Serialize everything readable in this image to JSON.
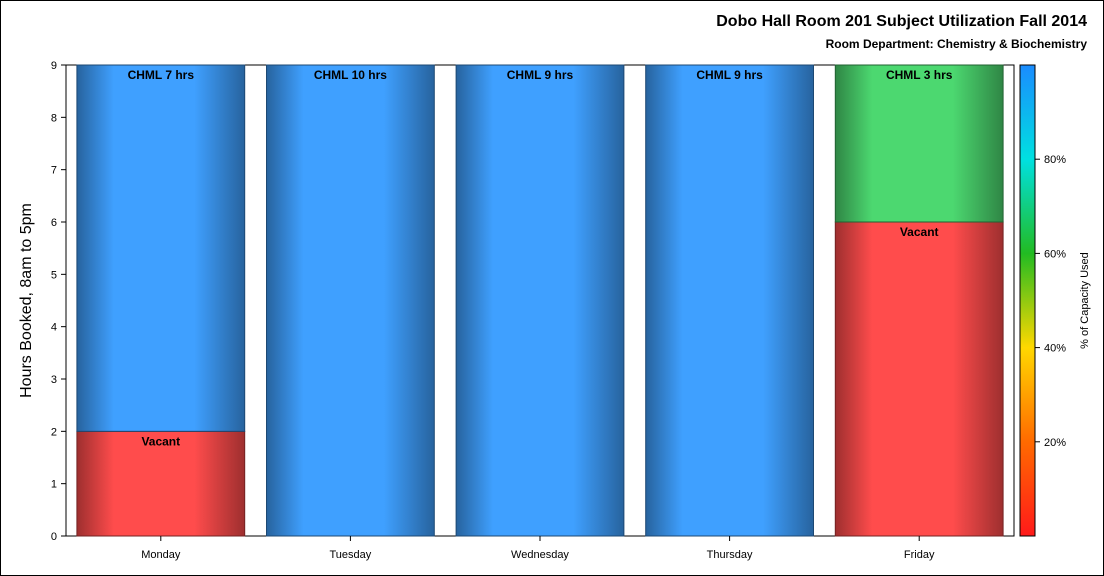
{
  "chart_data": {
    "type": "bar",
    "stacked": true,
    "title": "Dobo Hall Room 201 Subject Utilization Fall 2014",
    "subtitle": "Room Department:  Chemistry & Biochemistry",
    "xlabel": "",
    "ylabel": "Hours Booked, 8am to 5pm",
    "ylim": [
      0,
      9
    ],
    "yticks": [
      "0",
      "1",
      "2",
      "3",
      "4",
      "5",
      "6",
      "7",
      "8",
      "9"
    ],
    "categories": [
      "Monday",
      "Tuesday",
      "Wednesday",
      "Thursday",
      "Friday"
    ],
    "bars": [
      {
        "category": "Monday",
        "segments": [
          {
            "label": "Vacant",
            "value": 2,
            "color": "#ff4c4c"
          },
          {
            "label": "CHML 7 hrs",
            "value": 7,
            "color": "#3fa0ff"
          }
        ]
      },
      {
        "category": "Tuesday",
        "segments": [
          {
            "label": "CHML 10 hrs",
            "value": 9,
            "color": "#3fa0ff"
          }
        ]
      },
      {
        "category": "Wednesday",
        "segments": [
          {
            "label": "CHML 9 hrs",
            "value": 9,
            "color": "#3fa0ff"
          }
        ]
      },
      {
        "category": "Thursday",
        "segments": [
          {
            "label": "CHML 9 hrs",
            "value": 9,
            "color": "#3fa0ff"
          }
        ]
      },
      {
        "category": "Friday",
        "segments": [
          {
            "label": "Vacant",
            "value": 6,
            "color": "#ff4c4c"
          },
          {
            "label": "CHML 3 hrs",
            "value": 3,
            "color": "#4cd870"
          }
        ]
      }
    ],
    "colorbar": {
      "label": "% of Capacity Used",
      "range": [
        0,
        100
      ],
      "ticks": [
        {
          "value": 20,
          "label": "20%"
        },
        {
          "value": 40,
          "label": "40%"
        },
        {
          "value": 60,
          "label": "60%"
        },
        {
          "value": 80,
          "label": "80%"
        }
      ],
      "colors": [
        "#ff1a1a",
        "#ff6a00",
        "#ffd800",
        "#22bb22",
        "#00e0e0",
        "#1a8cff"
      ]
    },
    "grid": false,
    "legend": "right"
  }
}
